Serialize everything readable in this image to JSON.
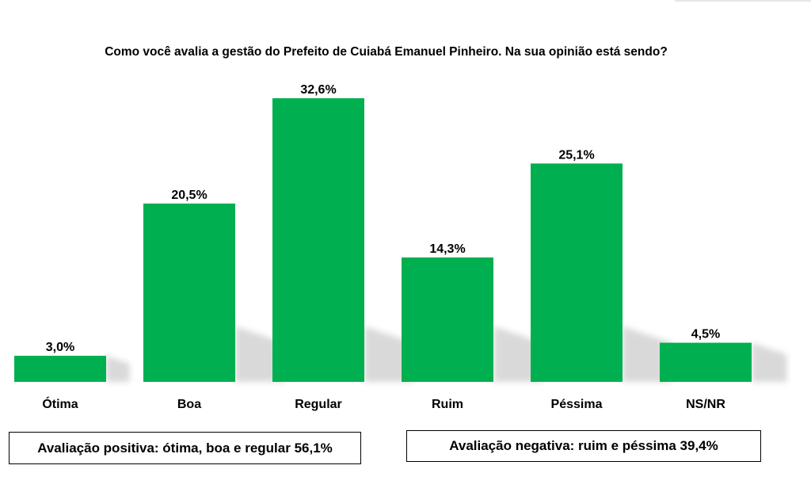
{
  "title": "Como você avalia a gestão do Prefeito de Cuiabá Emanuel Pinheiro. Na sua opinião está sendo?",
  "colors": {
    "bar": "#00b050",
    "shadow": "#d9d9d9"
  },
  "chart_data": {
    "type": "bar",
    "title": "Como você avalia a gestão do Prefeito de Cuiabá Emanuel Pinheiro. Na sua opinião está sendo?",
    "categories": [
      "Ótima",
      "Boa",
      "Regular",
      "Ruim",
      "Péssima",
      "NS/NR"
    ],
    "values": [
      3.0,
      20.5,
      32.6,
      14.3,
      25.1,
      4.5
    ],
    "value_labels": [
      "3,0%",
      "20,5%",
      "32,6%",
      "14,3%",
      "25,1%",
      "4,5%"
    ],
    "unit": "%",
    "ylim": [
      0,
      32.6
    ],
    "grid": false,
    "legend": "none"
  },
  "summary": {
    "positive": "Avaliação positiva: ótima, boa e regular 56,1%",
    "negative": "Avaliação negativa: ruim e péssima 39,4%"
  }
}
